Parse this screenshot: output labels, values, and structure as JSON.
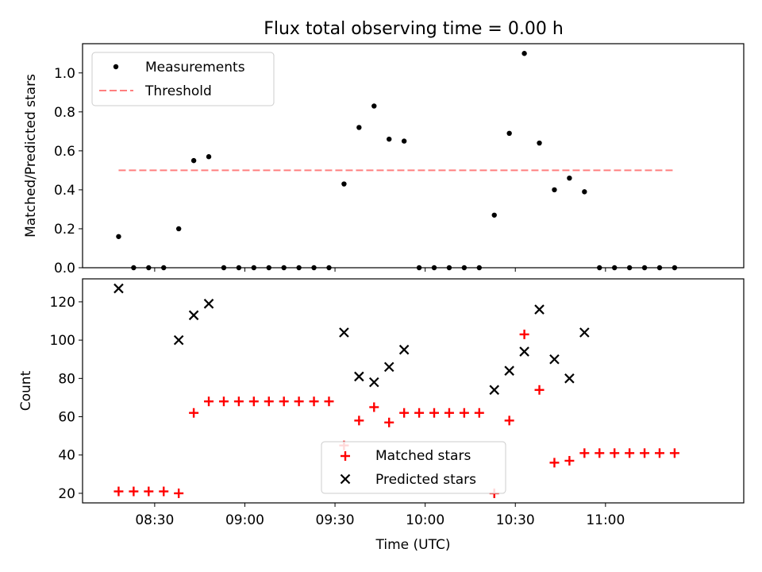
{
  "chart_data": [
    {
      "type": "scatter",
      "title": "Flux total observing time = 0.00 h",
      "ylabel": "Matched/Predicted stars",
      "xlim": [
        "08:06",
        "11:46"
      ],
      "ylim": [
        0,
        1.15
      ],
      "yticks": [
        0.0,
        0.2,
        0.4,
        0.6,
        0.8,
        1.0
      ],
      "ytick_labels": [
        "0.0",
        "0.2",
        "0.4",
        "0.6",
        "0.8",
        "1.0"
      ],
      "legend": {
        "position": "top-left",
        "entries": [
          "Measurements",
          "Threshold"
        ]
      },
      "threshold": {
        "name": "Threshold",
        "value": 0.5,
        "x_range": [
          "08:18",
          "11:23"
        ],
        "color": "#ff7f7f",
        "style": "dashed"
      },
      "series": [
        {
          "name": "Measurements",
          "color": "#000000",
          "marker": "dot",
          "x": [
            "08:18",
            "08:23",
            "08:28",
            "08:33",
            "08:38",
            "08:43",
            "08:48",
            "08:53",
            "08:58",
            "09:03",
            "09:08",
            "09:13",
            "09:18",
            "09:23",
            "09:28",
            "09:33",
            "09:38",
            "09:43",
            "09:48",
            "09:53",
            "09:58",
            "10:03",
            "10:08",
            "10:13",
            "10:18",
            "10:23",
            "10:28",
            "10:33",
            "10:38",
            "10:43",
            "10:48",
            "10:53",
            "10:58",
            "11:03",
            "11:08",
            "11:13",
            "11:18",
            "11:23"
          ],
          "y": [
            0.16,
            0,
            0,
            0,
            0.2,
            0.55,
            0.57,
            0,
            0,
            0,
            0,
            0,
            0,
            0,
            0,
            0.43,
            0.72,
            0.83,
            0.66,
            0.65,
            0,
            0,
            0,
            0,
            0,
            0.27,
            0.69,
            1.1,
            0.64,
            0.4,
            0.46,
            0.39,
            0,
            0,
            0,
            0,
            0,
            0
          ]
        }
      ]
    },
    {
      "type": "scatter",
      "xlabel": "Time (UTC)",
      "ylabel": "Count",
      "xlim": [
        "08:06",
        "11:46"
      ],
      "ylim": [
        15,
        132
      ],
      "xticks": [
        "08:30",
        "09:00",
        "09:30",
        "10:00",
        "10:30",
        "11:00"
      ],
      "xtick_labels": [
        "08:30",
        "09:00",
        "09:30",
        "10:00",
        "10:30",
        "11:00"
      ],
      "yticks": [
        20,
        40,
        60,
        80,
        100,
        120
      ],
      "ytick_labels": [
        "20",
        "40",
        "60",
        "80",
        "100",
        "120"
      ],
      "legend": {
        "position": "lower-center",
        "entries": [
          "Matched stars",
          "Predicted stars"
        ]
      },
      "series": [
        {
          "name": "Matched stars",
          "color": "#ff0000",
          "marker": "plus",
          "x": [
            "08:18",
            "08:23",
            "08:28",
            "08:33",
            "08:38",
            "08:43",
            "08:48",
            "08:53",
            "08:58",
            "09:03",
            "09:08",
            "09:13",
            "09:18",
            "09:23",
            "09:28",
            "09:33",
            "09:38",
            "09:43",
            "09:48",
            "09:53",
            "09:58",
            "10:03",
            "10:08",
            "10:13",
            "10:18",
            "10:23",
            "10:28",
            "10:33",
            "10:38",
            "10:43",
            "10:48",
            "10:53",
            "10:58",
            "11:03",
            "11:08",
            "11:13",
            "11:18",
            "11:23"
          ],
          "y": [
            21,
            21,
            21,
            21,
            20,
            62,
            68,
            68,
            68,
            68,
            68,
            68,
            68,
            68,
            68,
            45,
            58,
            65,
            57,
            62,
            62,
            62,
            62,
            62,
            62,
            20,
            58,
            103,
            74,
            36,
            37,
            41,
            41,
            41,
            41,
            41,
            41,
            41
          ]
        },
        {
          "name": "Predicted stars",
          "color": "#000000",
          "marker": "x",
          "x": [
            "08:18",
            "08:38",
            "08:43",
            "08:48",
            "09:33",
            "09:38",
            "09:43",
            "09:48",
            "09:53",
            "10:23",
            "10:28",
            "10:33",
            "10:38",
            "10:43",
            "10:48",
            "10:53"
          ],
          "y": [
            127,
            100,
            113,
            119,
            104,
            81,
            78,
            86,
            95,
            74,
            84,
            94,
            116,
            90,
            80,
            104
          ]
        }
      ]
    }
  ]
}
